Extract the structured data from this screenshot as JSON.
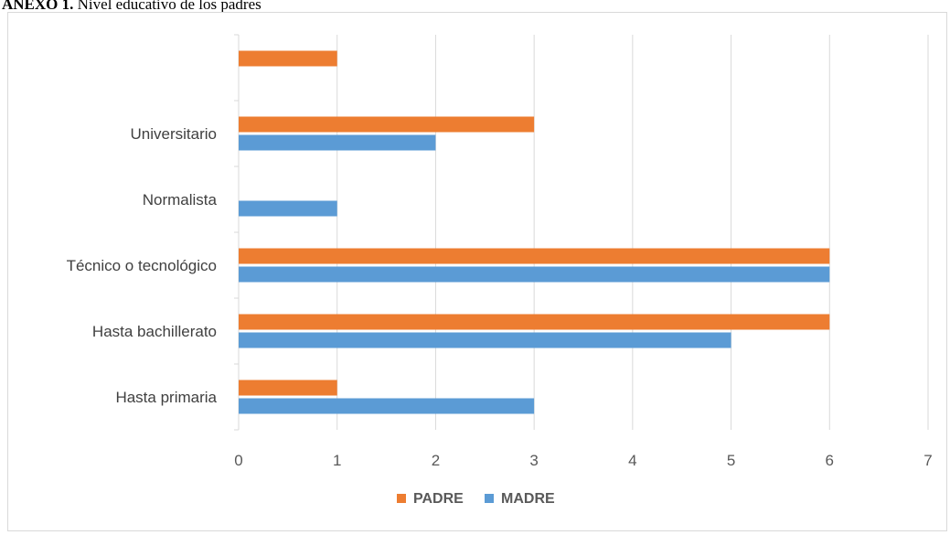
{
  "title": {
    "prefix": "ANEXO 1.",
    "text": " Nivel educativo de los padres"
  },
  "chart_data": {
    "type": "bar",
    "orientation": "horizontal",
    "categories": [
      "Hasta primaria",
      "Hasta bachillerato",
      "Técnico o tecnológico",
      "Normalista",
      "Universitario",
      ""
    ],
    "series": [
      {
        "name": "MADRE",
        "color": "#5b9bd5",
        "values": [
          3,
          5,
          6,
          1,
          2,
          0
        ]
      },
      {
        "name": "PADRE",
        "color": "#ed7d31",
        "values": [
          1,
          6,
          6,
          0,
          3,
          1
        ]
      }
    ],
    "xlim": [
      0,
      7
    ],
    "xticks": [
      0,
      1,
      2,
      3,
      4,
      5,
      6,
      7
    ],
    "grid": true,
    "legend": {
      "position": "bottom",
      "order": [
        "PADRE",
        "MADRE"
      ]
    }
  }
}
